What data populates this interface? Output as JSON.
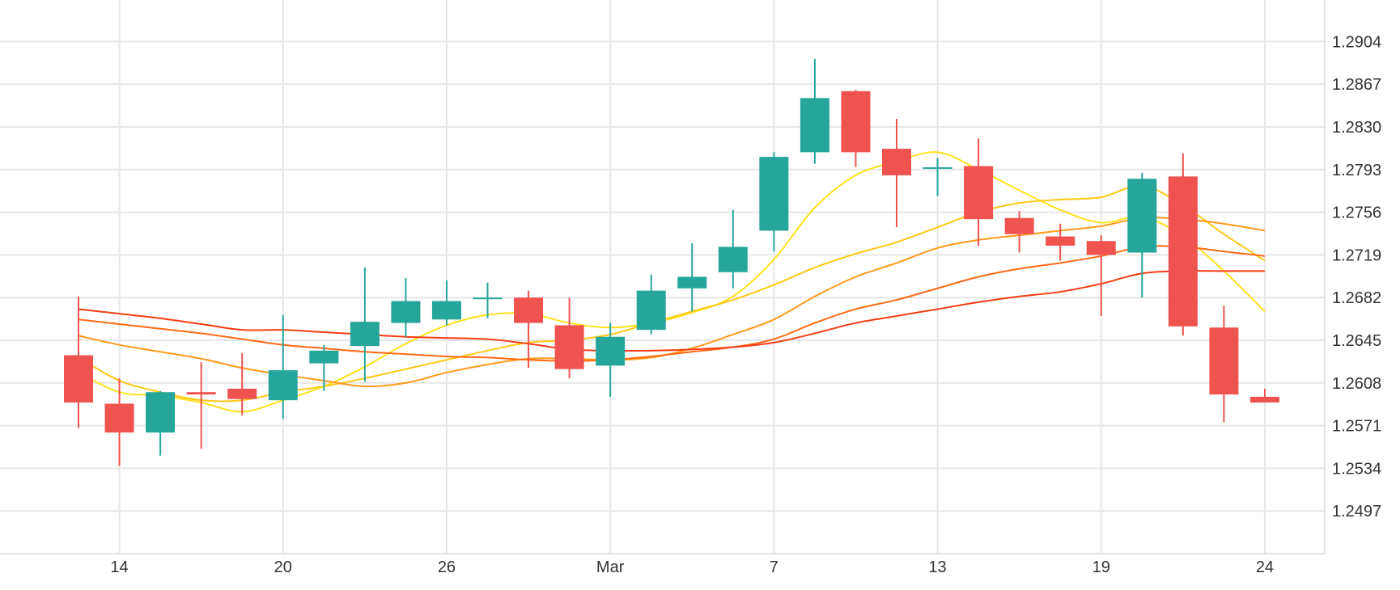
{
  "chart_data": {
    "type": "candlestick",
    "title": "",
    "xlabel": "",
    "ylabel": "",
    "ylim": [
      1.246,
      1.294
    ],
    "grid": true,
    "legend": "none",
    "colors": {
      "up": "#26a69a",
      "down": "#ef5350"
    },
    "yticks": [
      "1.2904",
      "1.2867",
      "1.2830",
      "1.2793",
      "1.2756",
      "1.2719",
      "1.2682",
      "1.2645",
      "1.2608",
      "1.2571",
      "1.2534",
      "1.2497"
    ],
    "xticks": [
      {
        "index": 1,
        "label": "14"
      },
      {
        "index": 5,
        "label": "20"
      },
      {
        "index": 9,
        "label": "26"
      },
      {
        "index": 13,
        "label": "Mar"
      },
      {
        "index": 17,
        "label": "7"
      },
      {
        "index": 21,
        "label": "13"
      },
      {
        "index": 25,
        "label": "19"
      },
      {
        "index": 29,
        "label": "24"
      }
    ],
    "candles": [
      {
        "open": 1.2632,
        "high": 1.2683,
        "low": 1.2569,
        "close": 1.2591
      },
      {
        "open": 1.259,
        "high": 1.2612,
        "low": 1.2536,
        "close": 1.2565
      },
      {
        "open": 1.2565,
        "high": 1.2601,
        "low": 1.2545,
        "close": 1.26
      },
      {
        "open": 1.26,
        "high": 1.2626,
        "low": 1.2551,
        "close": 1.2598
      },
      {
        "open": 1.2603,
        "high": 1.2634,
        "low": 1.258,
        "close": 1.2594
      },
      {
        "open": 1.2593,
        "high": 1.2667,
        "low": 1.2577,
        "close": 1.2619
      },
      {
        "open": 1.2625,
        "high": 1.2641,
        "low": 1.2601,
        "close": 1.2636
      },
      {
        "open": 1.264,
        "high": 1.2708,
        "low": 1.2609,
        "close": 1.2661
      },
      {
        "open": 1.266,
        "high": 1.2699,
        "low": 1.2648,
        "close": 1.2679
      },
      {
        "open": 1.2663,
        "high": 1.2697,
        "low": 1.2658,
        "close": 1.2679
      },
      {
        "open": 1.2682,
        "high": 1.2695,
        "low": 1.2664,
        "close": 1.2682
      },
      {
        "open": 1.2682,
        "high": 1.2688,
        "low": 1.2621,
        "close": 1.266
      },
      {
        "open": 1.2658,
        "high": 1.2682,
        "low": 1.2612,
        "close": 1.262
      },
      {
        "open": 1.2623,
        "high": 1.266,
        "low": 1.2596,
        "close": 1.2648
      },
      {
        "open": 1.2654,
        "high": 1.2702,
        "low": 1.265,
        "close": 1.2688
      },
      {
        "open": 1.269,
        "high": 1.2729,
        "low": 1.267,
        "close": 1.27
      },
      {
        "open": 1.2704,
        "high": 1.2758,
        "low": 1.269,
        "close": 1.2726
      },
      {
        "open": 1.274,
        "high": 1.2808,
        "low": 1.2722,
        "close": 1.2804
      },
      {
        "open": 1.2808,
        "high": 1.2889,
        "low": 1.2798,
        "close": 1.2855
      },
      {
        "open": 1.2861,
        "high": 1.2862,
        "low": 1.2795,
        "close": 1.2808
      },
      {
        "open": 1.2811,
        "high": 1.2837,
        "low": 1.2743,
        "close": 1.2788
      },
      {
        "open": 1.2795,
        "high": 1.2803,
        "low": 1.277,
        "close": 1.2795
      },
      {
        "open": 1.2796,
        "high": 1.282,
        "low": 1.2727,
        "close": 1.275
      },
      {
        "open": 1.2751,
        "high": 1.2757,
        "low": 1.2721,
        "close": 1.2737
      },
      {
        "open": 1.2735,
        "high": 1.2746,
        "low": 1.2714,
        "close": 1.2727
      },
      {
        "open": 1.2731,
        "high": 1.2736,
        "low": 1.2666,
        "close": 1.2719
      },
      {
        "open": 1.2721,
        "high": 1.279,
        "low": 1.2682,
        "close": 1.2785
      },
      {
        "open": 1.2787,
        "high": 1.2807,
        "low": 1.2649,
        "close": 1.2657
      },
      {
        "open": 1.2656,
        "high": 1.2675,
        "low": 1.2574,
        "close": 1.2598
      },
      {
        "open": 1.2596,
        "high": 1.2603,
        "low": 1.2591,
        "close": 1.2591
      }
    ],
    "series": [
      {
        "color": "#ffe11a",
        "values": [
          1.2617,
          1.26,
          1.2597,
          1.2591,
          1.2583,
          1.2593,
          1.2605,
          1.2622,
          1.2642,
          1.2658,
          1.2667,
          1.2668,
          1.266,
          1.2656,
          1.266,
          1.2669,
          1.2683,
          1.2715,
          1.276,
          1.2788,
          1.28,
          1.2808,
          1.2793,
          1.2775,
          1.2758,
          1.2747,
          1.2752,
          1.2735,
          1.2705,
          1.267
        ]
      },
      {
        "color": "#ffc814",
        "values": [
          1.263,
          1.261,
          1.26,
          1.2593,
          1.2593,
          1.26,
          1.2605,
          1.2612,
          1.262,
          1.2628,
          1.2636,
          1.2643,
          1.2645,
          1.265,
          1.266,
          1.267,
          1.268,
          1.2693,
          1.2708,
          1.272,
          1.273,
          1.2743,
          1.2756,
          1.2764,
          1.2767,
          1.2769,
          1.2779,
          1.2762,
          1.2737,
          1.2714
        ]
      },
      {
        "color": "#ff9a1a",
        "values": [
          1.2649,
          1.2641,
          1.2635,
          1.2629,
          1.2621,
          1.2615,
          1.261,
          1.2605,
          1.2608,
          1.2617,
          1.2624,
          1.2629,
          1.2629,
          1.2628,
          1.263,
          1.2638,
          1.265,
          1.2663,
          1.2683,
          1.27,
          1.2712,
          1.2725,
          1.2732,
          1.2736,
          1.274,
          1.2744,
          1.2751,
          1.275,
          1.2746,
          1.274
        ]
      },
      {
        "color": "#ff6a14",
        "values": [
          1.2663,
          1.2659,
          1.2655,
          1.2651,
          1.2646,
          1.2641,
          1.2638,
          1.2635,
          1.2633,
          1.2631,
          1.263,
          1.2628,
          1.2627,
          1.2628,
          1.2631,
          1.2635,
          1.2639,
          1.2646,
          1.266,
          1.2672,
          1.268,
          1.269,
          1.27,
          1.2707,
          1.2712,
          1.2718,
          1.2726,
          1.2726,
          1.2722,
          1.2718
        ]
      },
      {
        "color": "#f53d14",
        "values": [
          1.2672,
          1.2668,
          1.2664,
          1.2659,
          1.2654,
          1.2654,
          1.2652,
          1.265,
          1.2648,
          1.2647,
          1.2646,
          1.2642,
          1.2637,
          1.2636,
          1.2636,
          1.2637,
          1.2639,
          1.2643,
          1.2651,
          1.266,
          1.2666,
          1.2672,
          1.2678,
          1.2683,
          1.2687,
          1.2694,
          1.2703,
          1.2705,
          1.2705,
          1.2705
        ]
      }
    ]
  }
}
